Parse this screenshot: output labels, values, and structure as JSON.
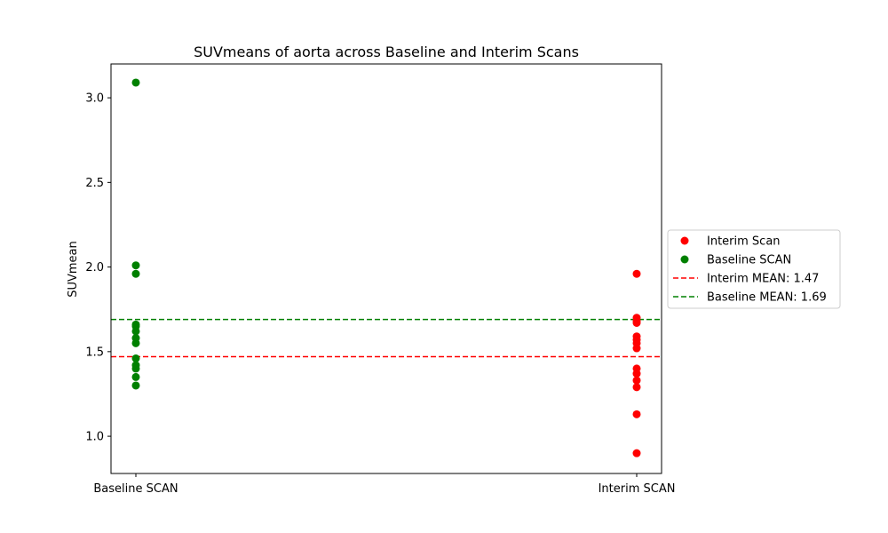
{
  "chart_data": {
    "type": "scatter",
    "title": "SUVmeans of aorta across Baseline and Interim Scans",
    "xlabel": "",
    "ylabel": "SUVmean",
    "categories": [
      "Baseline SCAN",
      "Interim SCAN"
    ],
    "ylim": [
      0.78,
      3.2
    ],
    "yticks": [
      1.0,
      1.5,
      2.0,
      2.5,
      3.0
    ],
    "ytick_labels": [
      "1.0",
      "1.5",
      "2.0",
      "2.5",
      "3.0"
    ],
    "grid": false,
    "legend_position": "center-right outside",
    "series": [
      {
        "name": "Interim Scan",
        "category": "Interim SCAN",
        "color": "#ff0000",
        "values": [
          1.96,
          1.7,
          1.68,
          1.67,
          1.59,
          1.57,
          1.55,
          1.52,
          1.4,
          1.37,
          1.33,
          1.29,
          1.13,
          0.9
        ]
      },
      {
        "name": "Baseline SCAN",
        "category": "Baseline SCAN",
        "color": "#008000",
        "values": [
          3.09,
          2.01,
          1.96,
          1.66,
          1.65,
          1.62,
          1.58,
          1.55,
          1.46,
          1.42,
          1.4,
          1.35,
          1.3
        ]
      }
    ],
    "reference_lines": [
      {
        "name": "Interim MEAN: 1.47",
        "value": 1.47,
        "color": "#ff0000",
        "style": "dashed"
      },
      {
        "name": "Baseline MEAN: 1.69",
        "value": 1.69,
        "color": "#008000",
        "style": "dashed"
      }
    ]
  }
}
